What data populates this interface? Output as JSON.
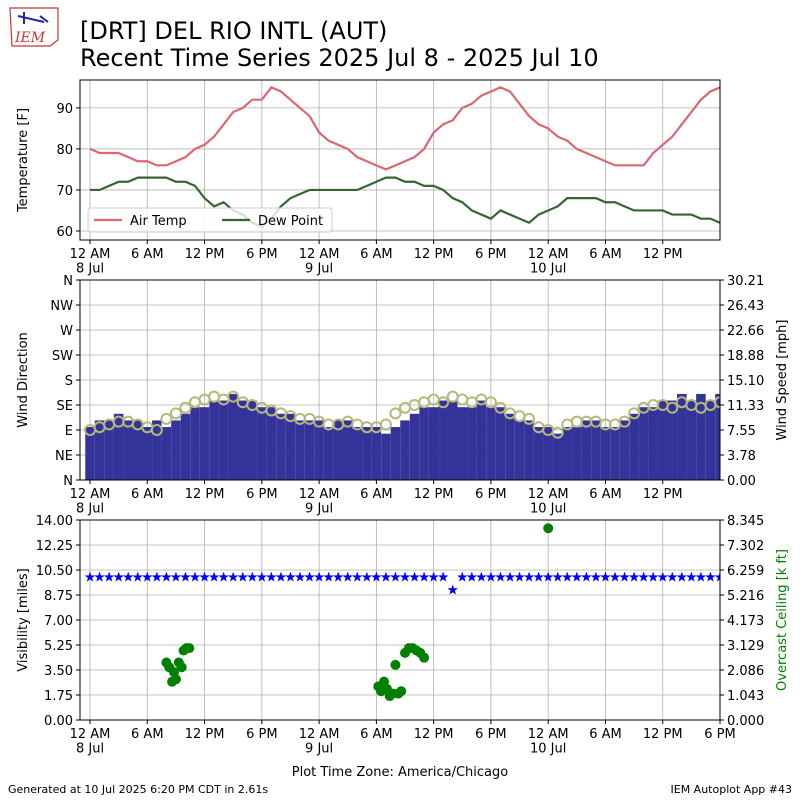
{
  "logo": "IEM",
  "header": {
    "title": "[DRT] DEL RIO INTL (AUT)",
    "subtitle": "Recent Time Series 2025 Jul 8 - 2025 Jul 10"
  },
  "footer": {
    "left": "Generated at 10 Jul 2025 6:20 PM CDT in 2.61s",
    "right": "IEM Autoplot App #43"
  },
  "chart_data": [
    {
      "type": "line",
      "ylabel": "Temperature [F]",
      "grid": true,
      "legend": "lower left",
      "xlim": [
        -1.05,
        66
      ],
      "ylim": [
        57.8,
        96.8
      ],
      "yticks": [
        60,
        70,
        80,
        90
      ],
      "xticks": [
        {
          "value": 0,
          "label": "12 AM\n8 Jul"
        },
        {
          "value": 6,
          "label": "6 AM"
        },
        {
          "value": 12,
          "label": "12 PM"
        },
        {
          "value": 18,
          "label": "6 PM"
        },
        {
          "value": 24,
          "label": "12 AM\n9 Jul"
        },
        {
          "value": 30,
          "label": "6 AM"
        },
        {
          "value": 36,
          "label": "12 PM"
        },
        {
          "value": 42,
          "label": "6 PM"
        },
        {
          "value": 48,
          "label": "12 AM\n10 Jul"
        },
        {
          "value": 54,
          "label": "6 AM"
        },
        {
          "value": 60,
          "label": "12 PM"
        }
      ],
      "x": [
        0,
        1,
        2,
        3,
        4,
        5,
        6,
        7,
        8,
        9,
        10,
        11,
        12,
        13,
        14,
        15,
        16,
        17,
        18,
        19,
        20,
        21,
        22,
        23,
        24,
        25,
        26,
        27,
        28,
        29,
        30,
        31,
        32,
        33,
        34,
        35,
        36,
        37,
        38,
        39,
        40,
        41,
        42,
        43,
        44,
        45,
        46,
        47,
        48,
        49,
        50,
        51,
        52,
        53,
        54,
        55,
        56,
        57,
        58,
        59,
        60,
        61,
        62,
        63,
        64,
        65,
        66
      ],
      "series": [
        {
          "name": "Air Temp",
          "color": "#dd6670",
          "values": [
            80,
            79,
            79,
            79,
            78,
            77,
            77,
            76,
            76,
            77,
            78,
            80,
            81,
            83,
            86,
            89,
            90,
            92,
            92,
            95,
            94,
            92,
            90,
            88,
            84,
            82,
            81,
            80,
            78,
            77,
            76,
            75,
            76,
            77,
            78,
            80,
            84,
            86,
            87,
            90,
            91,
            93,
            94,
            95,
            94,
            91,
            88,
            86,
            85,
            83,
            82,
            80,
            79,
            78,
            77,
            76,
            76,
            76,
            76,
            79,
            81,
            83,
            86,
            89,
            92,
            94,
            95
          ]
        },
        {
          "name": "Dew Point",
          "color": "#336633",
          "values": [
            70,
            70,
            71,
            72,
            72,
            73,
            73,
            73,
            73,
            72,
            72,
            71,
            68,
            66,
            67,
            65,
            64,
            62,
            61,
            63,
            66,
            68,
            69,
            70,
            70,
            70,
            70,
            70,
            70,
            71,
            72,
            73,
            73,
            72,
            72,
            71,
            71,
            70,
            68,
            67,
            65,
            64,
            63,
            65,
            64,
            63,
            62,
            64,
            65,
            66,
            68,
            68,
            68,
            68,
            67,
            67,
            66,
            65,
            65,
            65,
            65,
            64,
            64,
            64,
            63,
            63,
            62
          ]
        }
      ]
    },
    {
      "type": "wind",
      "ylabel": "Wind Direction",
      "y2label": "Wind Speed [mph]",
      "y2label_color": "#000000",
      "grid": true,
      "xlim": [
        -1.05,
        66
      ],
      "ylim": [
        0,
        360
      ],
      "y2lim": [
        0,
        30.21
      ],
      "yticks": [
        {
          "value": 0,
          "label": "N"
        },
        {
          "value": 45,
          "label": "NE"
        },
        {
          "value": 90,
          "label": "E"
        },
        {
          "value": 135,
          "label": "SE"
        },
        {
          "value": 180,
          "label": "S"
        },
        {
          "value": 225,
          "label": "SW"
        },
        {
          "value": 270,
          "label": "W"
        },
        {
          "value": 315,
          "label": "NW"
        },
        {
          "value": 360,
          "label": "N"
        }
      ],
      "y2ticks": [
        {
          "value": 0,
          "label": "0.00"
        },
        {
          "value": 3.78,
          "label": "3.78"
        },
        {
          "value": 7.55,
          "label": "7.55"
        },
        {
          "value": 11.33,
          "label": "11.33"
        },
        {
          "value": 15.1,
          "label": "15.10"
        },
        {
          "value": 18.88,
          "label": "18.88"
        },
        {
          "value": 22.66,
          "label": "22.66"
        },
        {
          "value": 26.43,
          "label": "26.43"
        },
        {
          "value": 30.21,
          "label": "30.21"
        }
      ],
      "xticks": [
        {
          "value": 0,
          "label": "12 AM\n8 Jul"
        },
        {
          "value": 6,
          "label": "6 AM"
        },
        {
          "value": 12,
          "label": "12 PM"
        },
        {
          "value": 18,
          "label": "6 PM"
        },
        {
          "value": 24,
          "label": "12 AM\n9 Jul"
        },
        {
          "value": 30,
          "label": "6 AM"
        },
        {
          "value": 36,
          "label": "12 PM"
        },
        {
          "value": 42,
          "label": "6 PM"
        },
        {
          "value": 48,
          "label": "12 AM\n10 Jul"
        },
        {
          "value": 54,
          "label": "6 AM"
        },
        {
          "value": 60,
          "label": "12 PM"
        }
      ],
      "x": [
        0,
        1,
        2,
        3,
        4,
        5,
        6,
        7,
        8,
        9,
        10,
        11,
        12,
        13,
        14,
        15,
        16,
        17,
        18,
        19,
        20,
        21,
        22,
        23,
        24,
        25,
        26,
        27,
        28,
        29,
        30,
        31,
        32,
        33,
        34,
        35,
        36,
        37,
        38,
        39,
        40,
        41,
        42,
        43,
        44,
        45,
        46,
        47,
        48,
        49,
        50,
        51,
        52,
        53,
        54,
        55,
        56,
        57,
        58,
        59,
        60,
        61,
        62,
        63,
        64,
        65,
        66
      ],
      "series": [
        {
          "mark": "bar",
          "axis": "y2",
          "color": "#333399",
          "values": [
            8,
            9,
            9,
            10,
            9,
            9,
            8,
            9,
            8,
            9,
            10,
            11,
            11,
            12,
            12,
            13,
            12,
            12,
            11,
            11,
            10,
            10,
            9,
            9,
            9,
            8,
            9,
            9,
            8,
            8,
            8,
            7,
            8,
            9,
            10,
            11,
            11,
            12,
            12,
            11,
            11,
            12,
            11,
            11,
            10,
            9,
            9,
            8,
            8,
            7,
            8,
            8,
            9,
            9,
            8,
            8,
            9,
            10,
            11,
            11,
            12,
            12,
            13,
            12,
            13,
            12,
            13
          ]
        },
        {
          "mark": "circle",
          "color": "#b5b87a",
          "values": [
            90,
            95,
            100,
            105,
            105,
            100,
            95,
            90,
            110,
            120,
            130,
            140,
            145,
            150,
            145,
            150,
            140,
            135,
            130,
            125,
            120,
            115,
            110,
            110,
            105,
            100,
            100,
            105,
            100,
            95,
            95,
            100,
            120,
            130,
            135,
            140,
            145,
            140,
            150,
            145,
            140,
            145,
            140,
            130,
            120,
            115,
            110,
            95,
            90,
            85,
            100,
            105,
            105,
            105,
            100,
            100,
            105,
            120,
            130,
            135,
            135,
            130,
            140,
            135,
            130,
            135,
            140
          ]
        }
      ]
    },
    {
      "type": "scatter",
      "ylabel": "Visibility [miles]",
      "y2label": "Overcast Ceiling [k ft]",
      "y2label_color": "#008000",
      "xlabel": "Plot Time Zone: America/Chicago",
      "grid": true,
      "xlim": [
        -1.05,
        66
      ],
      "ylim": [
        0,
        14
      ],
      "y2lim": [
        0,
        8.345
      ],
      "yticks": [
        {
          "value": 0,
          "label": "0.00"
        },
        {
          "value": 1.75,
          "label": "1.75"
        },
        {
          "value": 3.5,
          "label": "3.50"
        },
        {
          "value": 5.25,
          "label": "5.25"
        },
        {
          "value": 7,
          "label": "7.00"
        },
        {
          "value": 8.75,
          "label": "8.75"
        },
        {
          "value": 10.5,
          "label": "10.50"
        },
        {
          "value": 12.25,
          "label": "12.25"
        },
        {
          "value": 14,
          "label": "14.00"
        }
      ],
      "y2ticks": [
        {
          "value": 0,
          "label": "0.000"
        },
        {
          "value": 1.043,
          "label": "1.043"
        },
        {
          "value": 2.086,
          "label": "2.086"
        },
        {
          "value": 3.129,
          "label": "3.129"
        },
        {
          "value": 4.173,
          "label": "4.173"
        },
        {
          "value": 5.216,
          "label": "5.216"
        },
        {
          "value": 6.259,
          "label": "6.259"
        },
        {
          "value": 7.302,
          "label": "7.302"
        },
        {
          "value": 8.345,
          "label": "8.345"
        }
      ],
      "xticks": [
        {
          "value": 0,
          "label": "12 AM\n8 Jul"
        },
        {
          "value": 6,
          "label": "6 AM"
        },
        {
          "value": 12,
          "label": "12 PM"
        },
        {
          "value": 18,
          "label": "6 PM"
        },
        {
          "value": 24,
          "label": "12 AM\n9 Jul"
        },
        {
          "value": 30,
          "label": "6 AM"
        },
        {
          "value": 36,
          "label": "12 PM"
        },
        {
          "value": 42,
          "label": "6 PM"
        },
        {
          "value": 48,
          "label": "12 AM\n10 Jul"
        },
        {
          "value": 54,
          "label": "6 AM"
        },
        {
          "value": 60,
          "label": "12 PM"
        },
        {
          "value": 66,
          "label": "6 PM"
        }
      ],
      "series": [
        {
          "marker": "star",
          "color": "#0000ff",
          "x": [
            0,
            1,
            2,
            3,
            4,
            5,
            6,
            7,
            8,
            9,
            10,
            11,
            12,
            13,
            14,
            15,
            16,
            17,
            18,
            19,
            20,
            21,
            22,
            23,
            24,
            25,
            26,
            27,
            28,
            29,
            30,
            31,
            32,
            33,
            34,
            35,
            36,
            37,
            38,
            39,
            40,
            41,
            42,
            43,
            44,
            45,
            46,
            47,
            48,
            49,
            50,
            51,
            52,
            53,
            54,
            55,
            56,
            57,
            58,
            59,
            60,
            61,
            62,
            63,
            64,
            65,
            66
          ],
          "values": [
            10,
            10,
            10,
            10,
            10,
            10,
            10,
            10,
            10,
            10,
            10,
            10,
            10,
            10,
            10,
            10,
            10,
            10,
            10,
            10,
            10,
            10,
            10,
            10,
            10,
            10,
            10,
            10,
            10,
            10,
            10,
            10,
            10,
            10,
            10,
            10,
            10,
            10,
            9.1,
            10,
            10,
            10,
            10,
            10,
            10,
            10,
            10,
            10,
            10,
            10,
            10,
            10,
            10,
            10,
            10,
            10,
            10,
            10,
            10,
            10,
            10,
            10,
            10,
            10,
            10,
            10,
            10
          ]
        },
        {
          "marker": "circle",
          "axis": "y2",
          "color": "#008000",
          "x": [
            8,
            8.3,
            8.6,
            8.8,
            9.0,
            9.3,
            9.6,
            9.8,
            10.1,
            10.4,
            30.2,
            30.5,
            30.8,
            31.1,
            31.4,
            31.7,
            32.0,
            32.3,
            32.6,
            33.0,
            33.4,
            33.8,
            34.2,
            34.6,
            35.0,
            48
          ],
          "values": [
            2.4,
            2.2,
            1.6,
            2.0,
            1.7,
            2.4,
            2.2,
            2.9,
            3.0,
            3.0,
            1.4,
            1.2,
            1.6,
            1.3,
            1.0,
            1.1,
            2.3,
            1.1,
            1.2,
            2.8,
            3.0,
            3.0,
            2.9,
            2.8,
            2.6,
            8.0
          ]
        }
      ]
    }
  ]
}
